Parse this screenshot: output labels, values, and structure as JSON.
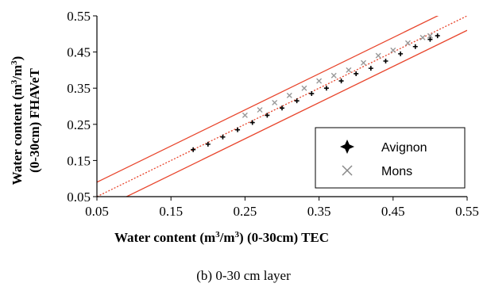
{
  "caption": "(b) 0-30 cm layer",
  "chart_data": {
    "type": "scatter",
    "xlabel": {
      "part1": "Water content (m",
      "sup1": "3",
      "part2": "/m",
      "sup2": "3",
      "part3": ")   (0-30cm) TEC"
    },
    "ylabel": {
      "line1a": "Water content  (m",
      "sup1": "3",
      "line1b": "/m",
      "sup2": "3",
      "line1c": ")",
      "line2": "(0-30cm) FHAVeT"
    },
    "xlim": [
      0.05,
      0.55
    ],
    "ylim": [
      0.05,
      0.55
    ],
    "xticks": [
      "0.05",
      "0.15",
      "0.25",
      "0.35",
      "0.45",
      "0.55"
    ],
    "yticks": [
      "0.05",
      "0.15",
      "0.25",
      "0.35",
      "0.45",
      "0.55"
    ],
    "reference_lines": {
      "one_to_one": {
        "slope": 1,
        "intercept": 0,
        "color": "#e8452c",
        "style": "dotted"
      },
      "bounds": [
        {
          "slope": 1,
          "intercept": 0.04,
          "color": "#e8452c"
        },
        {
          "slope": 1,
          "intercept": -0.04,
          "color": "#e8452c"
        }
      ]
    },
    "legend": {
      "position": "bottom-right"
    },
    "series": [
      {
        "name": "Avignon",
        "marker": "plus",
        "color": "#000000",
        "x": [
          0.18,
          0.2,
          0.22,
          0.24,
          0.26,
          0.28,
          0.3,
          0.32,
          0.34,
          0.36,
          0.38,
          0.4,
          0.42,
          0.44,
          0.46,
          0.48,
          0.5,
          0.51
        ],
        "y": [
          0.18,
          0.195,
          0.215,
          0.235,
          0.255,
          0.275,
          0.295,
          0.315,
          0.335,
          0.35,
          0.37,
          0.39,
          0.405,
          0.425,
          0.445,
          0.465,
          0.485,
          0.495
        ]
      },
      {
        "name": "Mons",
        "marker": "x",
        "color": "#999999",
        "x": [
          0.25,
          0.27,
          0.29,
          0.31,
          0.33,
          0.35,
          0.37,
          0.39,
          0.41,
          0.43,
          0.45,
          0.47,
          0.49,
          0.5
        ],
        "y": [
          0.275,
          0.29,
          0.31,
          0.33,
          0.35,
          0.37,
          0.385,
          0.4,
          0.42,
          0.44,
          0.455,
          0.475,
          0.49,
          0.495
        ]
      }
    ]
  }
}
